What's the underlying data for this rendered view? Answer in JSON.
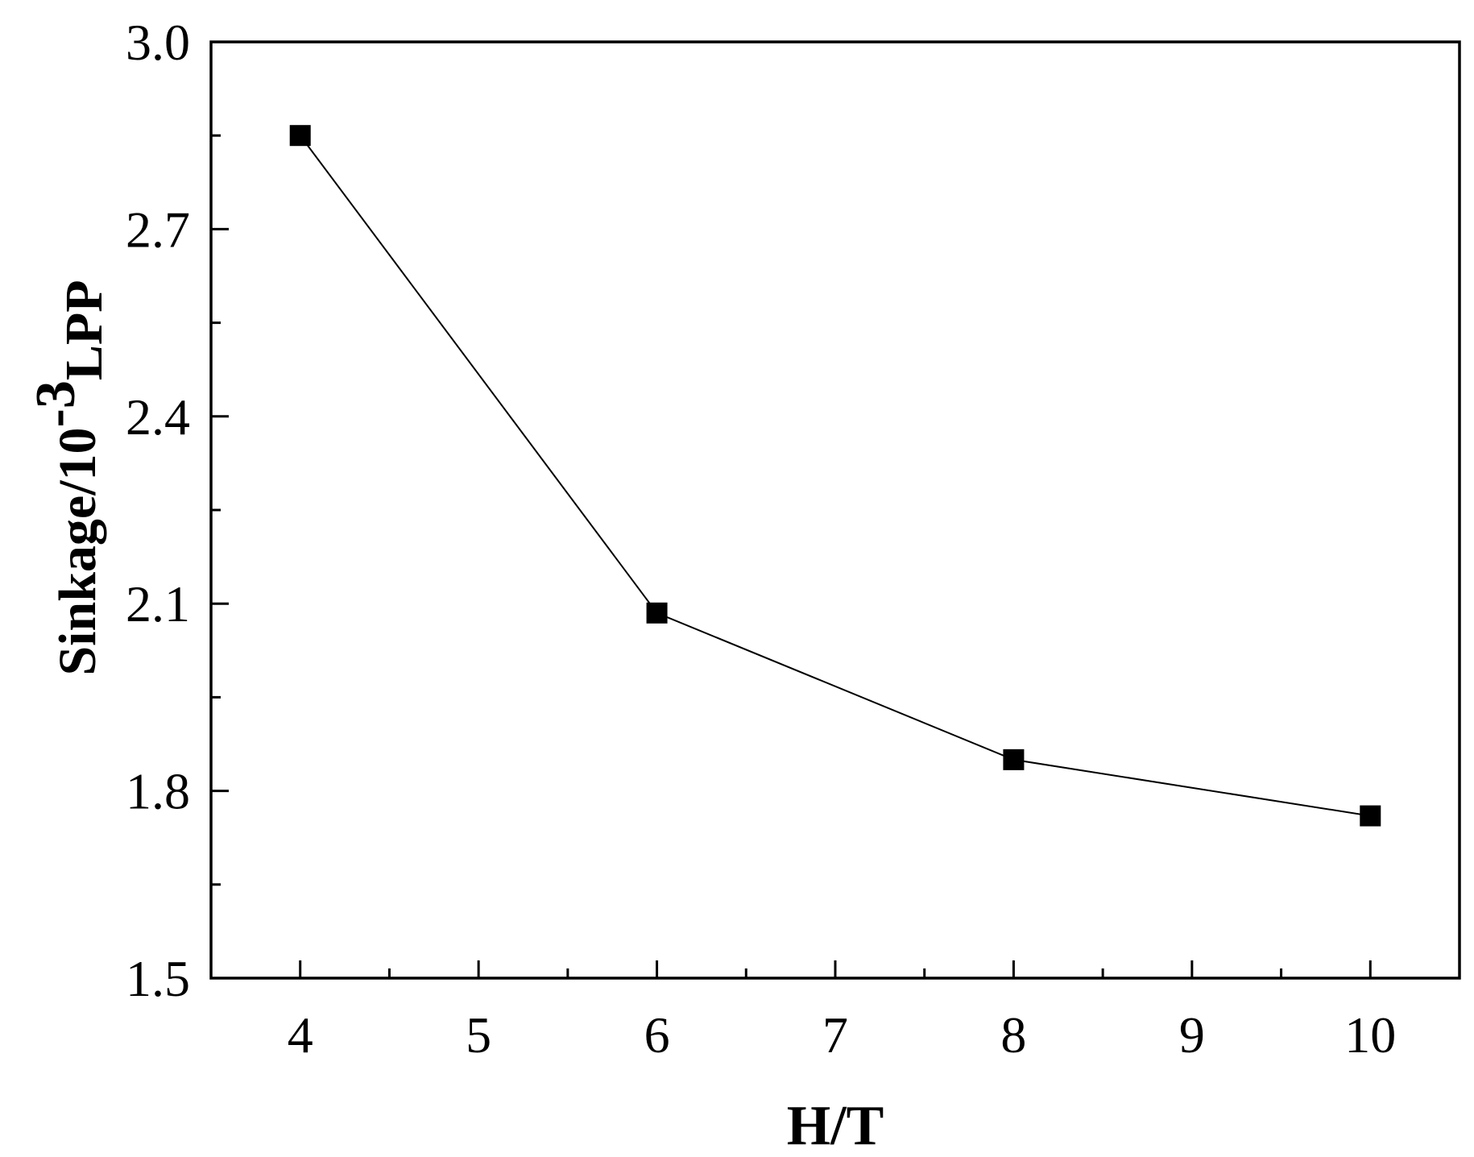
{
  "chart_data": {
    "type": "line",
    "x": [
      4,
      6,
      8,
      10
    ],
    "series": [
      {
        "values": [
          2.85,
          2.085,
          1.85,
          1.76
        ],
        "marker": "square",
        "color": "#000000"
      }
    ],
    "xlabel": "H/T",
    "ylabel": {
      "main": "Sinkage/10",
      "superscript": "-3",
      "subscript": "LPP"
    },
    "xlim": [
      3.5,
      10.5
    ],
    "ylim": [
      1.5,
      3.0
    ],
    "xticks": [
      4,
      5,
      6,
      7,
      8,
      9,
      10
    ],
    "xtick_labels": [
      "4",
      "5",
      "6",
      "7",
      "8",
      "9",
      "10"
    ],
    "yticks": [
      1.5,
      1.8,
      2.1,
      2.4,
      2.7,
      3.0
    ],
    "ytick_labels": [
      "1.5",
      "1.8",
      "2.1",
      "2.4",
      "2.7",
      "3.0"
    ],
    "grid": false,
    "legend": false
  }
}
